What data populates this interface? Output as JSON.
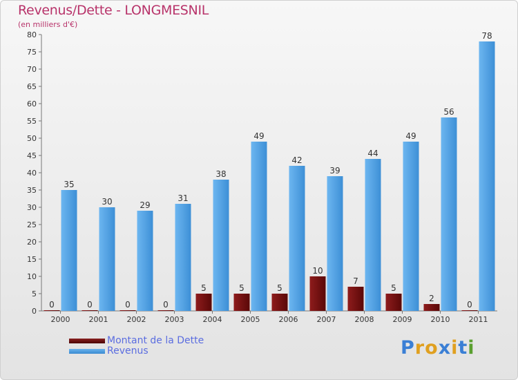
{
  "chart_data": {
    "type": "bar",
    "title": "Revenus/Dette - LONGMESNIL",
    "subtitle": "(en milliers d'€)",
    "categories": [
      "2000",
      "2001",
      "2002",
      "2003",
      "2004",
      "2005",
      "2006",
      "2007",
      "2008",
      "2009",
      "2010",
      "2011"
    ],
    "series": [
      {
        "name": "Montant de la Dette",
        "color": "#7a1010",
        "values": [
          0,
          0,
          0,
          0,
          5,
          5,
          5,
          10,
          7,
          5,
          2,
          0
        ]
      },
      {
        "name": "Revenus",
        "color": "#4a9fe0",
        "values": [
          35,
          30,
          29,
          31,
          38,
          49,
          42,
          39,
          44,
          49,
          56,
          78
        ]
      }
    ],
    "ylim": [
      0,
      80
    ],
    "yticks": [
      0,
      5,
      10,
      15,
      20,
      25,
      30,
      35,
      40,
      45,
      50,
      55,
      60,
      65,
      70,
      75,
      80
    ],
    "grid": false,
    "legend_position": "bottom-left"
  },
  "logo": {
    "letters": [
      "P",
      "r",
      "o",
      "x",
      "i",
      "t",
      "i"
    ],
    "colors": [
      "#3a7fd5",
      "#e0a020",
      "#e0a020",
      "#3a7fd5",
      "#e0a020",
      "#3a7fd5",
      "#5aa030"
    ]
  }
}
